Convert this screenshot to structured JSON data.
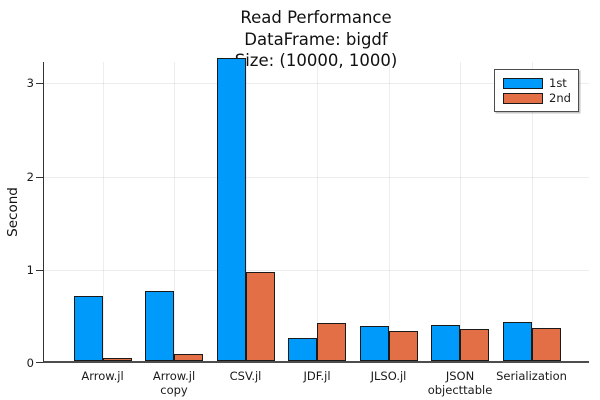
{
  "header": {
    "title_lines": [
      "Read Performance",
      "DataFrame: bigdf",
      "Size: (10000, 1000)"
    ]
  },
  "chart_data": {
    "type": "bar",
    "title": "Read Performance\nDataFrame: bigdf\nSize: (10000, 1000)",
    "ylabel": "Second",
    "xlabel": "",
    "categories": [
      "Arrow.jl",
      "Arrow.jl\ncopy",
      "CSV.jl",
      "JDF.jl",
      "JLSO.jl",
      "JSON\nobjecttable",
      "Serialization"
    ],
    "series": [
      {
        "name": "1st",
        "color": "#009AFA",
        "values": [
          0.7,
          0.75,
          3.25,
          0.25,
          0.38,
          0.39,
          0.42
        ]
      },
      {
        "name": "2nd",
        "color": "#E36F47",
        "values": [
          0.02,
          0.07,
          0.95,
          0.41,
          0.32,
          0.34,
          0.35
        ]
      }
    ],
    "yticks": [
      0,
      1,
      2,
      3
    ],
    "ylim": [
      0,
      3.23
    ],
    "grid": true,
    "legend_position": "top-right",
    "bar_outline_color": "#1a1a1a"
  }
}
